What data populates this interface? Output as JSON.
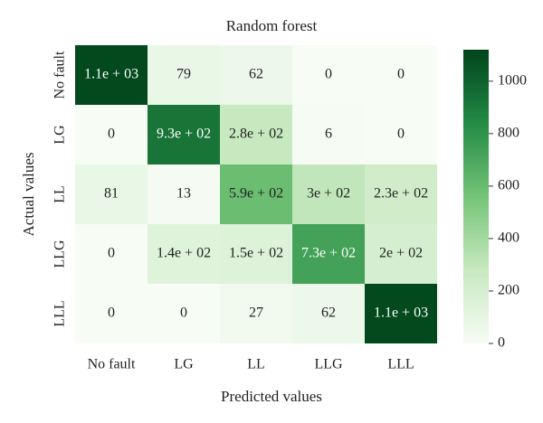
{
  "chart_data": {
    "type": "heatmap",
    "title": "Random forest",
    "x_label": "Predicted values",
    "y_label": "Actual values",
    "x_categories": [
      "No fault",
      "LG",
      "LL",
      "LLG",
      "LLL"
    ],
    "y_categories": [
      "No fault",
      "LG",
      "LL",
      "LLG",
      "LLL"
    ],
    "values": [
      [
        1100,
        79,
        62,
        0,
        0
      ],
      [
        0,
        930,
        280,
        6,
        0
      ],
      [
        81,
        13,
        590,
        300,
        230
      ],
      [
        0,
        140,
        150,
        730,
        200
      ],
      [
        0,
        0,
        27,
        62,
        1100
      ]
    ],
    "value_labels": [
      [
        "1.1e + 03",
        "79",
        "62",
        "0",
        "0"
      ],
      [
        "0",
        "9.3e + 02",
        "2.8e + 02",
        "6",
        "0"
      ],
      [
        "81",
        "13",
        "5.9e + 02",
        "3e + 02",
        "2.3e + 02"
      ],
      [
        "0",
        "1.4e + 02",
        "1.5e + 02",
        "7.3e + 02",
        "2e + 02"
      ],
      [
        "0",
        "0",
        "27",
        "62",
        "1.1e + 03"
      ]
    ],
    "colormap": [
      "#f7fcf5",
      "#c7e9c0",
      "#74c476",
      "#238b45",
      "#00441b"
    ],
    "clim": [
      0,
      1120
    ],
    "cticks": [
      0,
      200,
      400,
      600,
      800,
      1000
    ]
  }
}
